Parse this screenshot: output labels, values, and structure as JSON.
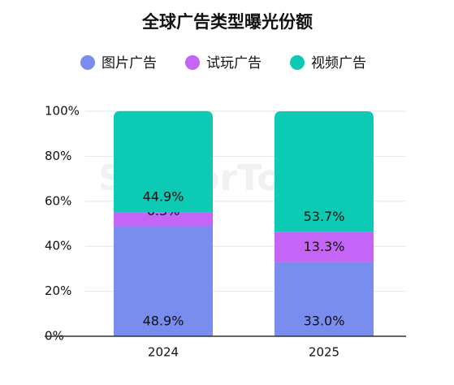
{
  "chart_data": {
    "type": "stacked_bar",
    "title": "全球广告类型曝光份额",
    "watermark": "SensorTower",
    "categories": [
      "2024",
      "2025"
    ],
    "series": [
      {
        "name": "图片广告",
        "color": "#788ded",
        "values": [
          48.9,
          33.0
        ],
        "value_labels": [
          "48.9%",
          "33.0%"
        ]
      },
      {
        "name": "试玩广告",
        "color": "#c465f7",
        "values": [
          6.3,
          13.3
        ],
        "value_labels": [
          "6.3%",
          "13.3%"
        ]
      },
      {
        "name": "视频广告",
        "color": "#0ccab4",
        "values": [
          44.9,
          53.7
        ],
        "value_labels": [
          "44.9%",
          "53.7%"
        ]
      }
    ],
    "ylim": [
      0,
      100
    ],
    "yticks": [
      {
        "value": 0,
        "label": "0%"
      },
      {
        "value": 20,
        "label": "20%"
      },
      {
        "value": 40,
        "label": "40%"
      },
      {
        "value": 60,
        "label": "60%"
      },
      {
        "value": 80,
        "label": "80%"
      },
      {
        "value": 100,
        "label": "100%"
      }
    ],
    "grid": true
  }
}
